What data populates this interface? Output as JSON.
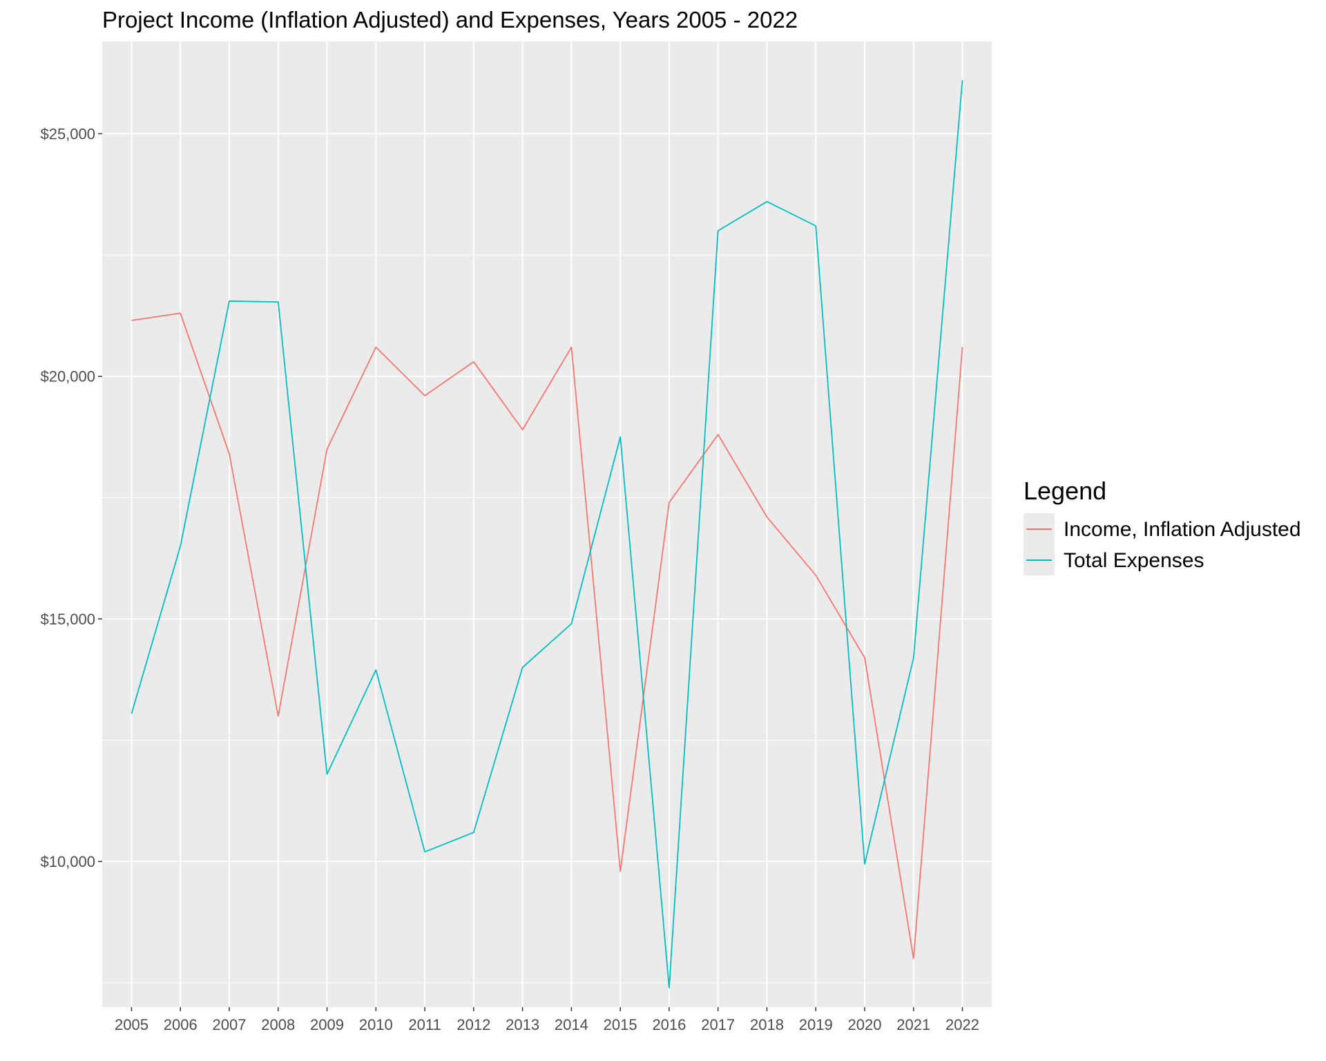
{
  "chart_data": {
    "type": "line",
    "title": "Project Income (Inflation Adjusted) and Expenses, Years 2005 - 2022",
    "xlabel": "",
    "ylabel": "",
    "categories": [
      "2005",
      "2006",
      "2007",
      "2008",
      "2009",
      "2010",
      "2011",
      "2012",
      "2013",
      "2014",
      "2015",
      "2016",
      "2017",
      "2018",
      "2019",
      "2020",
      "2021",
      "2022"
    ],
    "y_ticks": [
      10000,
      15000,
      20000,
      25000
    ],
    "y_tick_labels": [
      "$10,000",
      "$15,000",
      "$20,000",
      "$25,000"
    ],
    "ylim": [
      7000,
      26900
    ],
    "grid": true,
    "legend": {
      "title": "Legend",
      "position": "right"
    },
    "series": [
      {
        "name": "Income, Inflation Adjusted",
        "color": "#F8766D",
        "values": [
          21150,
          21300,
          18400,
          13000,
          18500,
          20600,
          19600,
          20300,
          18900,
          20600,
          9800,
          17400,
          18800,
          17100,
          15900,
          14200,
          8000,
          20600
        ]
      },
      {
        "name": "Total Expenses",
        "color": "#00BFC4",
        "values": [
          13050,
          16500,
          21550,
          21530,
          11800,
          13950,
          10200,
          10600,
          14000,
          14900,
          18750,
          7400,
          23000,
          23600,
          23100,
          9950,
          14200,
          26100
        ]
      }
    ]
  }
}
